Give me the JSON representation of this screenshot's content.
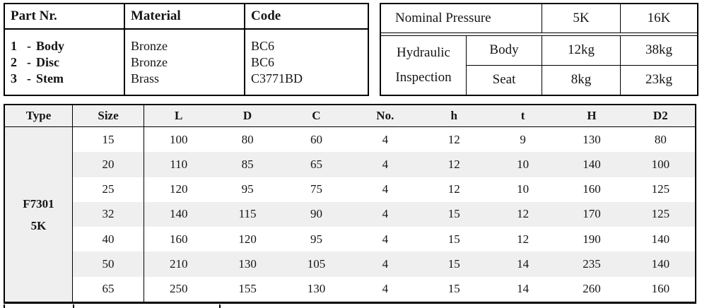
{
  "parts_table": {
    "headers": {
      "part": "Part Nr.",
      "material": "Material",
      "code": "Code"
    },
    "rows": [
      {
        "num": "1",
        "dash": "-",
        "name": "Body",
        "material": "Bronze",
        "code": "BC6"
      },
      {
        "num": "2",
        "dash": "-",
        "name": "Disc",
        "material": "Bronze",
        "code": "BC6"
      },
      {
        "num": "3",
        "dash": "-",
        "name": "Stem",
        "material": "Brass",
        "code": "C3771BD"
      }
    ]
  },
  "pressure_table": {
    "nominal_pressure_label": "Nominal Pressure",
    "pressure_classes": [
      "5K",
      "16K"
    ],
    "group_label_line1": "Hydraulic",
    "group_label_line2": "Inspection",
    "rows": [
      {
        "item": "Body",
        "values": [
          "12kg",
          "38kg"
        ]
      },
      {
        "item": "Seat",
        "values": [
          "8kg",
          "23kg"
        ]
      }
    ]
  },
  "dimensions_table": {
    "headers": [
      "Type",
      "Size",
      "L",
      "D",
      "C",
      "No.",
      "h",
      "t",
      "H",
      "D2"
    ],
    "type_value": {
      "line1": "F7301",
      "line2": "5K"
    },
    "rows": [
      [
        15,
        100,
        80,
        60,
        4,
        12,
        9,
        130,
        80
      ],
      [
        20,
        110,
        85,
        65,
        4,
        12,
        10,
        140,
        100
      ],
      [
        25,
        120,
        95,
        75,
        4,
        12,
        10,
        160,
        125
      ],
      [
        32,
        140,
        115,
        90,
        4,
        15,
        12,
        170,
        125
      ],
      [
        40,
        160,
        120,
        95,
        4,
        15,
        12,
        190,
        140
      ],
      [
        50,
        210,
        130,
        105,
        4,
        15,
        14,
        235,
        140
      ],
      [
        65,
        250,
        155,
        130,
        4,
        15,
        14,
        260,
        160
      ]
    ]
  },
  "colors": {
    "border": "#000000",
    "text": "#151515",
    "shaded_row": "#efefef",
    "type_column": "#efefef",
    "header_row": "#f0f0f0",
    "page_bg": "#ffffff"
  }
}
